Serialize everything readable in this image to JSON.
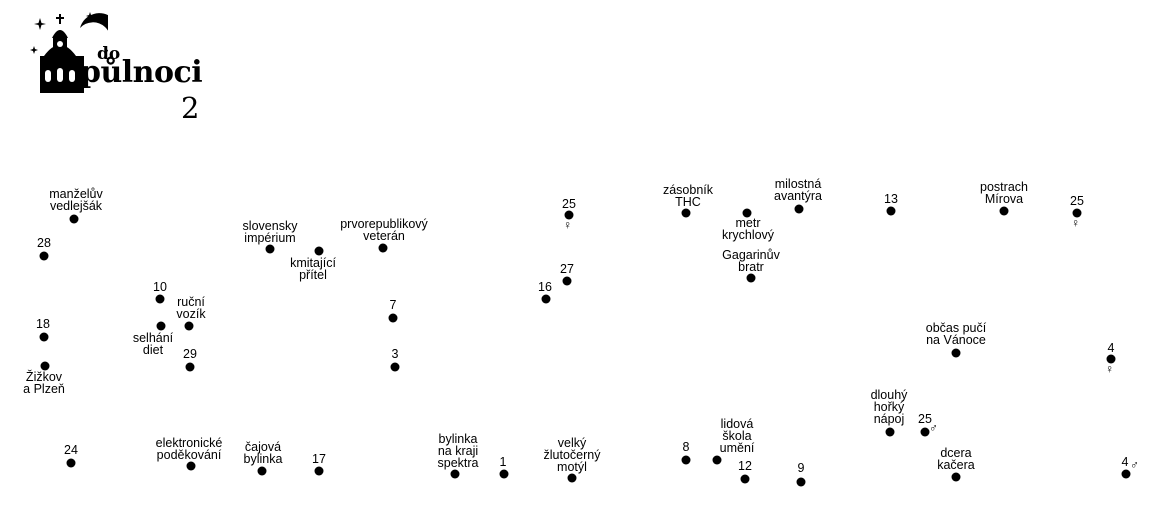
{
  "logo": {
    "word_small": "do",
    "word_large": "půlnoci",
    "number": "2"
  },
  "labels": {
    "manzeluv": "manželův\nvedlejšák",
    "slovensky": "slovensky\nimpérium",
    "prvorepublikovy": "prvorepublikový\nveterán",
    "kmitajici": "kmitající\npřítel",
    "rucni": "ruční\nvozík",
    "selhani": "selhání\ndiet",
    "zizkov": "Žižkov\na Plzeň",
    "elektronicke": "elektronické\npoděkování",
    "cajova": "čajová\nbylinka",
    "bylinka": "bylinka\nna kraji\nspektra",
    "velky": "velký\nžlutočerný\nmotýl",
    "zasobnik": "zásobník\nTHC",
    "metr": "metr\nkrychlový",
    "gagarinuv": "Gagarinův\nbratr",
    "milostna": "milostná\navantýra",
    "postrach": "postrach\nMírova",
    "obcas": "občas pučí\nna Vánoce",
    "dlouhy": "dlouhý\nhořký\nnápoj",
    "dcera": "dcera\nkačera",
    "lidova": "lidová\nškola\numění"
  },
  "numbers": {
    "n28": "28",
    "n10": "10",
    "n18": "18",
    "n29": "29",
    "n24": "24",
    "n17": "17",
    "n7": "7",
    "n3": "3",
    "n1": "1",
    "n16": "16",
    "n27": "27",
    "n25a": "25",
    "n8": "8",
    "n12": "12",
    "n9": "9",
    "n13": "13",
    "n25b": "25",
    "n4a": "4",
    "n25c": "25",
    "n4b": "4"
  },
  "symbols": {
    "female": "♀",
    "male": "♂"
  }
}
